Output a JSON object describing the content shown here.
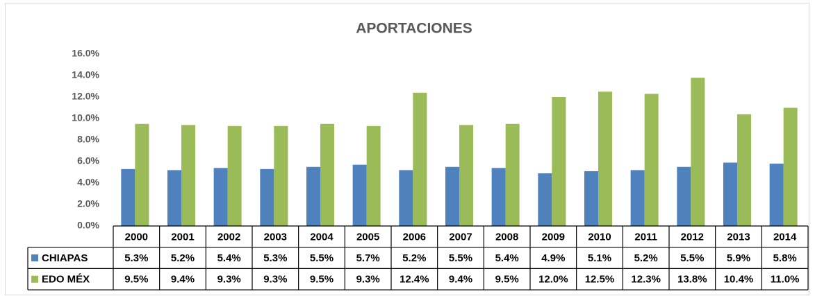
{
  "chart_data": {
    "type": "bar",
    "title": "APORTACIONES",
    "categories": [
      "2000",
      "2001",
      "2002",
      "2003",
      "2004",
      "2005",
      "2006",
      "2007",
      "2008",
      "2009",
      "2010",
      "2011",
      "2012",
      "2013",
      "2014"
    ],
    "series": [
      {
        "name": "CHIAPAS",
        "color": "#4f81bd",
        "values": [
          5.3,
          5.2,
          5.4,
          5.3,
          5.5,
          5.7,
          5.2,
          5.5,
          5.4,
          4.9,
          5.1,
          5.2,
          5.5,
          5.9,
          5.8
        ],
        "value_labels": [
          "5.3%",
          "5.2%",
          "5.4%",
          "5.3%",
          "5.5%",
          "5.7%",
          "5.2%",
          "5.5%",
          "5.4%",
          "4.9%",
          "5.1%",
          "5.2%",
          "5.5%",
          "5.9%",
          "5.8%"
        ]
      },
      {
        "name": "EDO MÉX",
        "color": "#9bbb59",
        "values": [
          9.5,
          9.4,
          9.3,
          9.3,
          9.5,
          9.3,
          12.4,
          9.4,
          9.5,
          12.0,
          12.5,
          12.3,
          13.8,
          10.4,
          11.0
        ],
        "value_labels": [
          "9.5%",
          "9.4%",
          "9.3%",
          "9.3%",
          "9.5%",
          "9.3%",
          "12.4%",
          "9.4%",
          "9.5%",
          "12.0%",
          "12.5%",
          "12.3%",
          "13.8%",
          "10.4%",
          "11.0%"
        ]
      }
    ],
    "ylim": [
      0,
      16
    ],
    "yticks": [
      {
        "value": 0,
        "label": "0.0%"
      },
      {
        "value": 2,
        "label": "2.0%"
      },
      {
        "value": 4,
        "label": "4.0%"
      },
      {
        "value": 6,
        "label": "6.0%"
      },
      {
        "value": 8,
        "label": "8.0%"
      },
      {
        "value": 10,
        "label": "10.0%"
      },
      {
        "value": 12,
        "label": "12.0%"
      },
      {
        "value": 14,
        "label": "14.0%"
      },
      {
        "value": 16,
        "label": "16.0%"
      }
    ],
    "grid": false
  }
}
